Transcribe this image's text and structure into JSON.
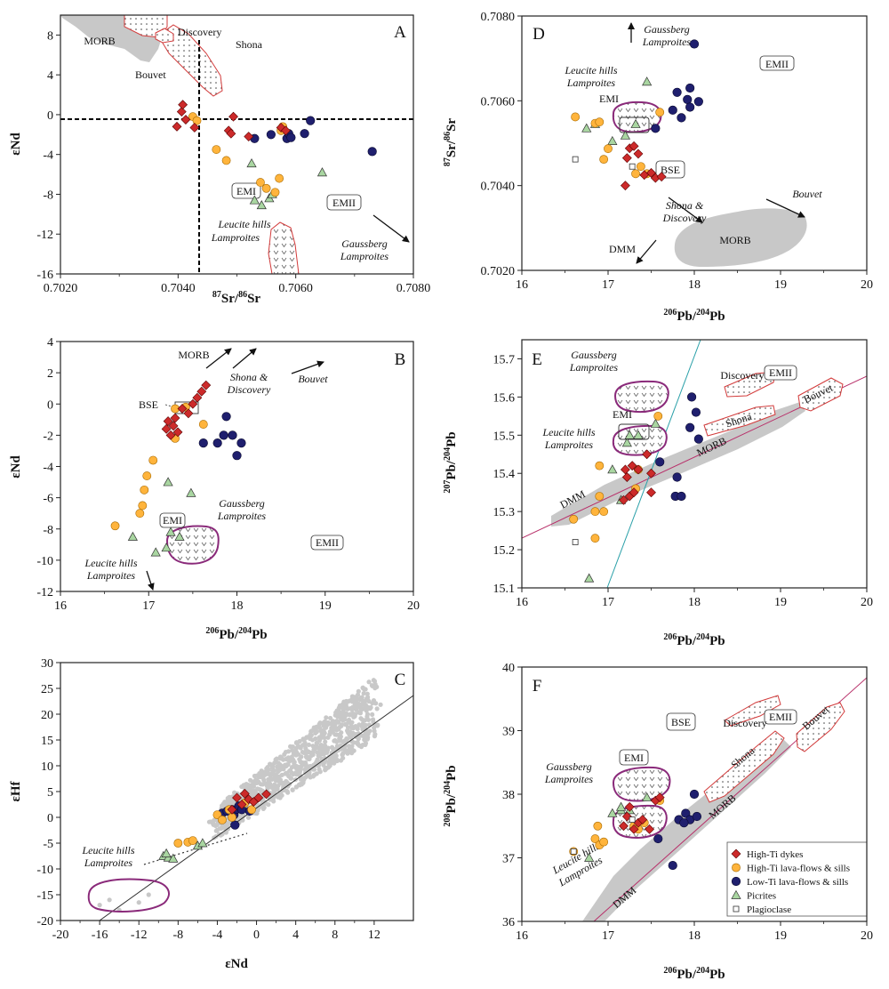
{
  "colors": {
    "high_ti_dyke": "#cc2a2a",
    "high_ti_lava": "#ffb43c",
    "low_ti": "#1f1f6e",
    "picrite": "#a9d6a1",
    "plag": "#ffffff",
    "field": "#c8c8c8",
    "ocean": "#d23a3a",
    "lamp": "#8a2a7a",
    "arrow": "#111"
  },
  "legend": [
    {
      "key": "dyke",
      "label": "High-Ti dykes"
    },
    {
      "key": "lava",
      "label": "High-Ti lava-flows & sills"
    },
    {
      "key": "lowti",
      "label": "Low-Ti lava-flows & sills"
    },
    {
      "key": "pic",
      "label": "Picrites"
    },
    {
      "key": "plag",
      "label": "Plagioclase"
    }
  ],
  "chart_data": [
    {
      "panel": "A",
      "type": "scatter",
      "xlabel": "87Sr/86Sr",
      "ylabel": "εNd",
      "xlim": [
        0.702,
        0.708
      ],
      "ylim": [
        -16,
        10
      ],
      "xticks": [
        "0.7020",
        "0.7040",
        "0.7060",
        "0.7080"
      ],
      "yticks": [
        "8",
        "4",
        "0",
        "-4",
        "-8",
        "-12",
        "-16"
      ],
      "labels": {
        "morb": "MORB",
        "discovery": "Discovery",
        "shona": "Shona",
        "bouvet": "Bouvet",
        "emi": "EMI",
        "emii": "EMII",
        "lh1": "Leucite hills",
        "lh2": "Lamproites",
        "gb1": "Gaussberg",
        "gb2": "Lamproites"
      },
      "series": {
        "dyke": [
          [
            0.70398,
            -1.2
          ],
          [
            0.70406,
            0.3
          ],
          [
            0.70408,
            1.0
          ],
          [
            0.70413,
            -0.5
          ],
          [
            0.70428,
            -1.3
          ],
          [
            0.70486,
            -1.6
          ],
          [
            0.7049,
            -1.9
          ],
          [
            0.70494,
            -0.2
          ],
          [
            0.7052,
            -2.2
          ],
          [
            0.70575,
            -1.3
          ],
          [
            0.70583,
            -1.6
          ]
        ],
        "lava": [
          [
            0.70425,
            -0.2
          ],
          [
            0.70432,
            -0.6
          ],
          [
            0.70465,
            -3.5
          ],
          [
            0.70482,
            -4.6
          ],
          [
            0.7054,
            -6.8
          ],
          [
            0.7055,
            -7.4
          ],
          [
            0.70565,
            -7.8
          ],
          [
            0.70572,
            -6.4
          ],
          [
            0.70578,
            -1.2
          ],
          [
            0.70575,
            -1.6
          ]
        ],
        "lowti": [
          [
            0.7053,
            -2.4
          ],
          [
            0.70558,
            -2.0
          ],
          [
            0.70585,
            -2.4
          ],
          [
            0.70588,
            -1.9
          ],
          [
            0.70592,
            -2.3
          ],
          [
            0.70615,
            -1.9
          ],
          [
            0.70625,
            -0.6
          ],
          [
            0.7073,
            -3.7
          ]
        ],
        "pic": [
          [
            0.70525,
            -4.9
          ],
          [
            0.7053,
            -8.6
          ],
          [
            0.70542,
            -9.1
          ],
          [
            0.70555,
            -8.4
          ],
          [
            0.7056,
            -8.0
          ],
          [
            0.70645,
            -5.8
          ]
        ]
      }
    },
    {
      "panel": "B",
      "type": "scatter",
      "xlabel": "206Pb/204Pb",
      "ylabel": "εNd",
      "xlim": [
        16,
        20
      ],
      "ylim": [
        -12,
        4
      ],
      "xticks": [
        "16",
        "17",
        "18",
        "19",
        "20"
      ],
      "yticks": [
        "4",
        "2",
        "0",
        "-2",
        "-4",
        "-6",
        "-8",
        "-10",
        "-12"
      ],
      "labels": {
        "morb": "MORB",
        "shona1": "Shona &",
        "shona2": "Discovery",
        "bouvet": "Bouvet",
        "bse": "BSE",
        "emi": "EMI",
        "emii": "EMII",
        "gb1": "Gaussberg",
        "gb2": "Lamproites",
        "lh1": "Leucite hills",
        "lh2": "Lamproites"
      },
      "series": {
        "dyke": [
          [
            17.2,
            -1.6
          ],
          [
            17.22,
            -1.1
          ],
          [
            17.25,
            -2.0
          ],
          [
            17.28,
            -1.4
          ],
          [
            17.3,
            -0.9
          ],
          [
            17.33,
            -1.8
          ],
          [
            17.38,
            -0.3
          ],
          [
            17.45,
            -0.6
          ],
          [
            17.5,
            0.0
          ],
          [
            17.55,
            0.4
          ],
          [
            17.6,
            0.8
          ],
          [
            17.65,
            1.2
          ]
        ],
        "lava": [
          [
            16.62,
            -7.8
          ],
          [
            16.9,
            -7.0
          ],
          [
            16.93,
            -6.5
          ],
          [
            16.95,
            -5.5
          ],
          [
            16.98,
            -4.6
          ],
          [
            17.05,
            -3.6
          ],
          [
            17.3,
            -0.3
          ],
          [
            17.42,
            -0.2
          ],
          [
            17.62,
            -1.3
          ],
          [
            17.3,
            -2.2
          ]
        ],
        "lowti": [
          [
            17.62,
            -2.5
          ],
          [
            17.78,
            -2.5
          ],
          [
            17.85,
            -2.0
          ],
          [
            17.88,
            -0.8
          ],
          [
            17.95,
            -2.0
          ],
          [
            18.0,
            -3.3
          ],
          [
            18.05,
            -2.5
          ]
        ],
        "pic": [
          [
            16.82,
            -8.5
          ],
          [
            17.08,
            -9.5
          ],
          [
            17.2,
            -9.2
          ],
          [
            17.22,
            -5.0
          ],
          [
            17.25,
            -8.2
          ],
          [
            17.35,
            -8.5
          ],
          [
            17.48,
            -5.7
          ]
        ]
      }
    },
    {
      "panel": "C",
      "type": "scatter",
      "xlabel": "εNd",
      "ylabel": "εHf",
      "xlim": [
        -20,
        16
      ],
      "ylim": [
        -20,
        30
      ],
      "xticks": [
        "-20",
        "-16",
        "-12",
        "-8",
        "-4",
        "0",
        "4",
        "8",
        "12"
      ],
      "yticks": [
        "30",
        "25",
        "20",
        "15",
        "10",
        "5",
        "0",
        "-5",
        "-10",
        "-15",
        "-20"
      ],
      "labels": {
        "lh1": "Leucite hills",
        "lh2": "Lamproites"
      },
      "series": {
        "dyke": [
          [
            -1.5,
            2.5
          ],
          [
            -0.8,
            3.5
          ],
          [
            -0.3,
            3.0
          ],
          [
            0.2,
            3.8
          ],
          [
            1.0,
            4.5
          ],
          [
            -2.5,
            1.5
          ],
          [
            -2.0,
            3.8
          ],
          [
            -1.2,
            4.6
          ]
        ],
        "lava": [
          [
            -8.0,
            -5.0
          ],
          [
            -7.0,
            -4.8
          ],
          [
            -6.5,
            -4.5
          ],
          [
            -4.0,
            0.5
          ],
          [
            -3.5,
            -0.5
          ],
          [
            -1.2,
            2.8
          ],
          [
            -0.5,
            1.5
          ],
          [
            -2.8,
            1.5
          ],
          [
            -2.5,
            0.0
          ]
        ],
        "lowti": [
          [
            -3.5,
            0.8
          ],
          [
            -3.0,
            1.2
          ],
          [
            -2.5,
            1.5
          ],
          [
            -2.3,
            0.5
          ],
          [
            -2.0,
            1.6
          ],
          [
            -1.8,
            2.2
          ],
          [
            -1.5,
            1.5
          ],
          [
            -2.2,
            -1.5
          ],
          [
            -0.7,
            1.2
          ]
        ],
        "pic": [
          [
            -9.5,
            -7.5
          ],
          [
            -9.0,
            -7.8
          ],
          [
            -8.5,
            -8.0
          ],
          [
            -6.0,
            -5.5
          ],
          [
            -5.5,
            -5.0
          ],
          [
            -9.2,
            -7.0
          ]
        ]
      }
    },
    {
      "panel": "D",
      "type": "scatter",
      "xlabel": "206Pb/204Pb",
      "ylabel": "87Sr/86Sr",
      "xlim": [
        16,
        20
      ],
      "ylim": [
        0.702,
        0.708
      ],
      "xticks": [
        "16",
        "17",
        "18",
        "19",
        "20"
      ],
      "yticks": [
        "0.7080",
        "0.7060",
        "0.7040",
        "0.7020"
      ],
      "labels": {
        "gb1": "Gaussberg",
        "gb2": "Lamproites",
        "lh1": "Leucite hills",
        "lh2": "Lamproites",
        "emi": "EMI",
        "emii": "EMII",
        "bse": "BSE",
        "shona1": "Shona &",
        "shona2": "Discovery",
        "bouvet": "Bouvet",
        "dmm": "DMM",
        "morb": "MORB"
      },
      "series": {
        "dyke": [
          [
            17.2,
            0.704
          ],
          [
            17.22,
            0.70465
          ],
          [
            17.25,
            0.70488
          ],
          [
            17.3,
            0.70493
          ],
          [
            17.35,
            0.70475
          ],
          [
            17.42,
            0.70425
          ],
          [
            17.5,
            0.7043
          ],
          [
            17.55,
            0.70418
          ],
          [
            17.62,
            0.70421
          ]
        ],
        "lava": [
          [
            16.62,
            0.70562
          ],
          [
            16.85,
            0.70547
          ],
          [
            16.9,
            0.7055
          ],
          [
            16.95,
            0.70462
          ],
          [
            17.0,
            0.70487
          ],
          [
            17.32,
            0.70428
          ],
          [
            17.38,
            0.70445
          ],
          [
            17.45,
            0.70428
          ],
          [
            17.6,
            0.70573
          ]
        ],
        "lowti": [
          [
            17.55,
            0.70535
          ],
          [
            17.75,
            0.70578
          ],
          [
            17.8,
            0.7062
          ],
          [
            17.85,
            0.7056
          ],
          [
            17.92,
            0.70603
          ],
          [
            17.95,
            0.7063
          ],
          [
            18.0,
            0.70734
          ],
          [
            18.05,
            0.70598
          ],
          [
            17.95,
            0.70585
          ]
        ],
        "pic": [
          [
            16.75,
            0.70535
          ],
          [
            16.85,
            0.70545
          ],
          [
            17.05,
            0.70505
          ],
          [
            17.2,
            0.70518
          ],
          [
            17.32,
            0.70545
          ],
          [
            17.45,
            0.70645
          ]
        ],
        "plag": [
          [
            16.62,
            0.70462
          ],
          [
            17.28,
            0.70445
          ]
        ]
      }
    },
    {
      "panel": "E",
      "type": "scatter",
      "xlabel": "206Pb/204Pb",
      "ylabel": "207Pb/204Pb",
      "xlim": [
        16,
        20
      ],
      "ylim": [
        15.1,
        15.75
      ],
      "xticks": [
        "16",
        "17",
        "18",
        "19",
        "20"
      ],
      "yticks": [
        "15.7",
        "15.6",
        "15.5",
        "15.4",
        "15.3",
        "15.2",
        "15.1"
      ],
      "labels": {
        "gb1": "Gaussberg",
        "gb2": "Lamproites",
        "emi": "EMI",
        "lh1": "Leucite hills",
        "lh2": "Lamproites",
        "discovery": "Discovery",
        "emii": "EMII",
        "shona": "Shona",
        "bouvet": "Bouvet",
        "morb": "MORB",
        "dmm": "DMM"
      },
      "series": {
        "dyke": [
          [
            17.18,
            15.33
          ],
          [
            17.2,
            15.41
          ],
          [
            17.22,
            15.39
          ],
          [
            17.25,
            15.34
          ],
          [
            17.28,
            15.42
          ],
          [
            17.3,
            15.35
          ],
          [
            17.35,
            15.41
          ],
          [
            17.5,
            15.4
          ],
          [
            17.5,
            15.35
          ],
          [
            17.45,
            15.45
          ]
        ],
        "lava": [
          [
            16.6,
            15.28
          ],
          [
            16.85,
            15.3
          ],
          [
            16.9,
            15.34
          ],
          [
            16.95,
            15.3
          ],
          [
            17.32,
            15.36
          ],
          [
            17.35,
            15.41
          ],
          [
            17.58,
            15.55
          ],
          [
            16.85,
            15.23
          ],
          [
            16.9,
            15.42
          ]
        ],
        "lowti": [
          [
            17.6,
            15.43
          ],
          [
            17.78,
            15.34
          ],
          [
            17.85,
            15.34
          ],
          [
            17.95,
            15.52
          ],
          [
            17.97,
            15.6
          ],
          [
            18.02,
            15.56
          ],
          [
            18.05,
            15.49
          ],
          [
            17.8,
            15.39
          ]
        ],
        "pic": [
          [
            16.78,
            15.125
          ],
          [
            17.05,
            15.41
          ],
          [
            17.22,
            15.48
          ],
          [
            17.25,
            15.5
          ],
          [
            17.35,
            15.5
          ],
          [
            17.55,
            15.53
          ],
          [
            17.15,
            15.33
          ]
        ],
        "plag": [
          [
            16.62,
            15.22
          ]
        ]
      }
    },
    {
      "panel": "F",
      "type": "scatter",
      "xlabel": "206Pb/204Pb",
      "ylabel": "208Pb/204Pb",
      "xlim": [
        16,
        20
      ],
      "ylim": [
        36,
        40
      ],
      "xticks": [
        "16",
        "17",
        "18",
        "19",
        "20"
      ],
      "yticks": [
        "40",
        "39",
        "38",
        "37",
        "36"
      ],
      "labels": {
        "bse": "BSE",
        "emii": "EMII",
        "discovery": "Discovery",
        "bouvet": "Bouvet",
        "shona": "Shona",
        "morb": "MORB",
        "emi": "EMI",
        "gb1": "Gaussberg",
        "gb2": "Lamproites",
        "lh1": "Leucite hills",
        "lh2": "Lamproites",
        "dmm": "DMM"
      },
      "series": {
        "dyke": [
          [
            17.18,
            37.5
          ],
          [
            17.22,
            37.65
          ],
          [
            17.25,
            37.8
          ],
          [
            17.3,
            37.45
          ],
          [
            17.35,
            37.55
          ],
          [
            17.4,
            37.6
          ],
          [
            17.48,
            37.45
          ],
          [
            17.55,
            37.9
          ],
          [
            17.6,
            37.95
          ]
        ],
        "lava": [
          [
            16.6,
            37.1
          ],
          [
            16.85,
            37.3
          ],
          [
            16.9,
            37.2
          ],
          [
            16.95,
            37.25
          ],
          [
            16.88,
            37.5
          ],
          [
            17.3,
            37.5
          ],
          [
            17.35,
            37.45
          ],
          [
            17.6,
            37.9
          ],
          [
            17.42,
            37.55
          ]
        ],
        "lowti": [
          [
            17.58,
            37.3
          ],
          [
            17.75,
            36.88
          ],
          [
            17.82,
            37.6
          ],
          [
            17.9,
            37.7
          ],
          [
            17.95,
            37.6
          ],
          [
            18.0,
            38.0
          ],
          [
            18.03,
            37.65
          ],
          [
            17.88,
            37.55
          ]
        ],
        "pic": [
          [
            16.78,
            37.0
          ],
          [
            17.05,
            37.7
          ],
          [
            17.15,
            37.75
          ],
          [
            17.25,
            37.75
          ],
          [
            17.45,
            37.95
          ],
          [
            17.15,
            37.8
          ]
        ],
        "plag": [
          [
            16.6,
            37.1
          ],
          [
            17.28,
            37.6
          ]
        ]
      }
    }
  ]
}
